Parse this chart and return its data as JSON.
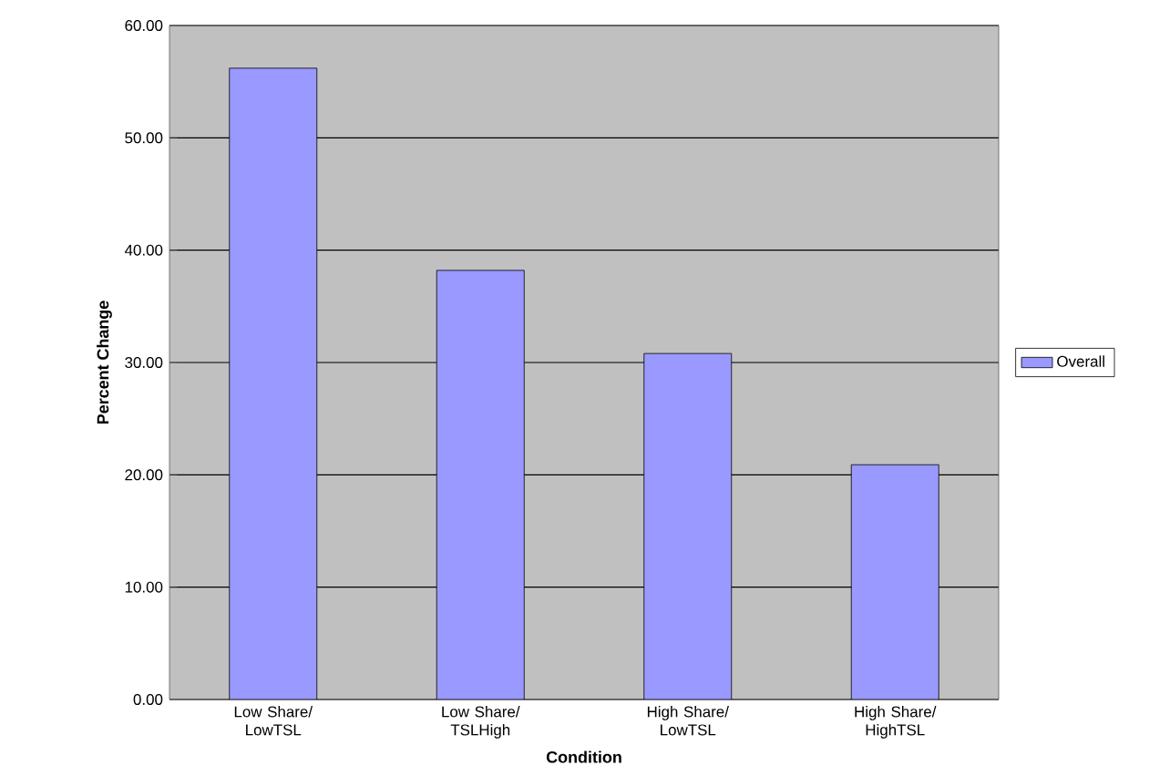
{
  "chart_data": {
    "type": "bar",
    "xlabel": "Condition",
    "ylabel": "Percent Change",
    "categories": [
      "Low Share/ LowTSL",
      "Low Share/ TSLHigh",
      "High Share/ LowTSL",
      "High Share/ HighTSL"
    ],
    "series": [
      {
        "name": "Overall",
        "color": "#9999ff",
        "values": [
          56.2,
          38.2,
          30.8,
          20.9
        ]
      }
    ],
    "ylim": [
      0,
      60
    ],
    "yticks": [
      {
        "value": 0,
        "label": "0.00"
      },
      {
        "value": 10,
        "label": "10.00"
      },
      {
        "value": 20,
        "label": "20.00"
      },
      {
        "value": 30,
        "label": "30.00"
      },
      {
        "value": 40,
        "label": "40.00"
      },
      {
        "value": 50,
        "label": "50.00"
      },
      {
        "value": 60,
        "label": "60.00"
      }
    ],
    "grid": "y",
    "legend": "right"
  }
}
